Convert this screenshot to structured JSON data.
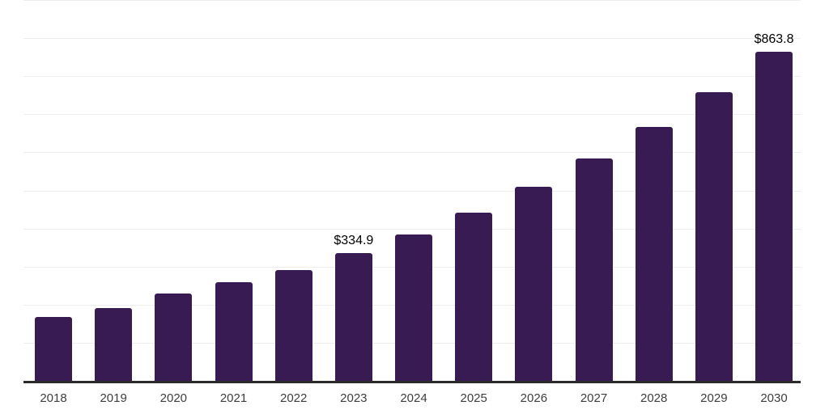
{
  "chart_data": {
    "type": "bar",
    "title": "",
    "xlabel": "",
    "ylabel": "",
    "categories": [
      "2018",
      "2019",
      "2020",
      "2021",
      "2022",
      "2023",
      "2024",
      "2025",
      "2026",
      "2027",
      "2028",
      "2029",
      "2030"
    ],
    "values": [
      168.0,
      191.3,
      229.5,
      259.3,
      291.2,
      334.9,
      384.7,
      442.1,
      509.0,
      584.5,
      667.4,
      758.8,
      863.8
    ],
    "value_labels": {
      "2023": "$334.9",
      "2030": "$863.8"
    },
    "ylim": [
      0,
      1000
    ],
    "gridline_step": 100,
    "grid": true,
    "legend": false,
    "colors": {
      "bar": "#371B52",
      "axis_line": "#2b2b2b",
      "gridline": "#eeeeee",
      "value_label": "#000000",
      "tick_label": "#3d3d3d",
      "background": "#ffffff"
    }
  }
}
